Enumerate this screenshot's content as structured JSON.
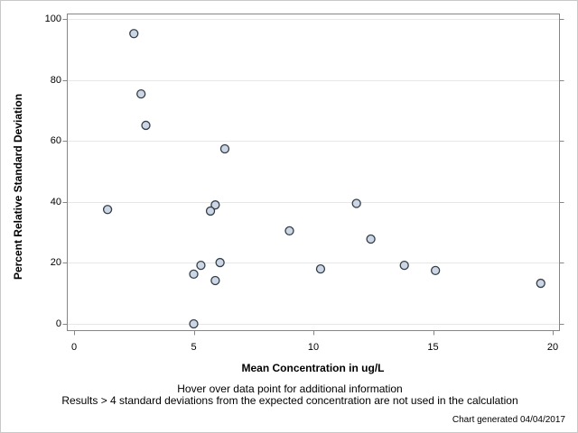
{
  "chart_data": {
    "type": "scatter",
    "title": "",
    "xlabel": "Mean Concentration in ug/L",
    "ylabel": "Percent Relative Standard Deviation",
    "xlim": [
      0,
      20
    ],
    "ylim": [
      0,
      100
    ],
    "x_ticks": [
      0,
      5,
      10,
      15,
      20
    ],
    "y_ticks": [
      0,
      20,
      40,
      60,
      80,
      100
    ],
    "grid": "horizontal",
    "legend": "none",
    "points": [
      {
        "x": 1.4,
        "y": 37.5
      },
      {
        "x": 2.5,
        "y": 95.2
      },
      {
        "x": 2.8,
        "y": 75.4
      },
      {
        "x": 3.0,
        "y": 65.1
      },
      {
        "x": 5.0,
        "y": 0.0
      },
      {
        "x": 5.0,
        "y": 16.3
      },
      {
        "x": 5.3,
        "y": 19.2
      },
      {
        "x": 5.9,
        "y": 39.0
      },
      {
        "x": 5.7,
        "y": 37.0
      },
      {
        "x": 5.9,
        "y": 14.2
      },
      {
        "x": 6.1,
        "y": 20.1
      },
      {
        "x": 6.3,
        "y": 57.4
      },
      {
        "x": 9.0,
        "y": 30.5
      },
      {
        "x": 10.3,
        "y": 18.0
      },
      {
        "x": 11.8,
        "y": 39.5
      },
      {
        "x": 12.4,
        "y": 27.8
      },
      {
        "x": 13.8,
        "y": 19.2
      },
      {
        "x": 15.1,
        "y": 17.5
      },
      {
        "x": 19.5,
        "y": 13.3
      }
    ]
  },
  "footnotes": {
    "line1": "Hover over data point for additional information",
    "line2": "Results > 4 standard deviations from the expected concentration are not used in the calculation",
    "generated": "Chart generated 04/04/2017"
  },
  "colors": {
    "marker_fill": "#cdd6e4",
    "marker_stroke": "#333e48",
    "axis": "#868686",
    "grid": "#e7e7e7",
    "text": "#000000",
    "background": "#ffffff",
    "border": "#c8c8c8"
  }
}
